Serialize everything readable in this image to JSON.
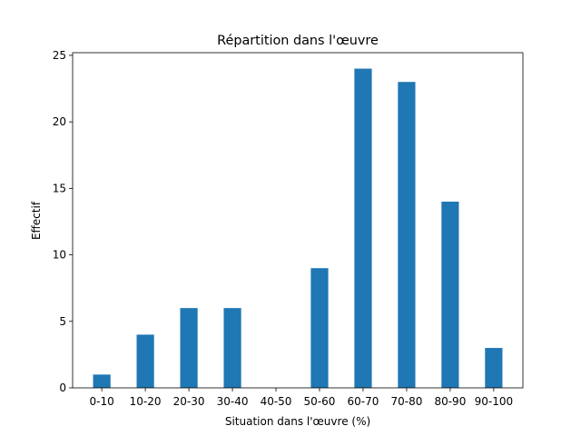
{
  "chart_data": {
    "type": "bar",
    "title": "Répartition dans l'œuvre",
    "x_label": "Situation dans l'œuvre (%)",
    "y_label": "Effectif",
    "categories": [
      "0-10",
      "10-20",
      "20-30",
      "30-40",
      "40-50",
      "50-60",
      "60-70",
      "70-80",
      "80-90",
      "90-100"
    ],
    "values": [
      1,
      4,
      6,
      6,
      0,
      9,
      24,
      23,
      14,
      3
    ],
    "color": "#1f77b4",
    "ylim": [
      0,
      25.2
    ],
    "yticks": [
      0,
      5,
      10,
      15,
      20,
      25
    ]
  }
}
